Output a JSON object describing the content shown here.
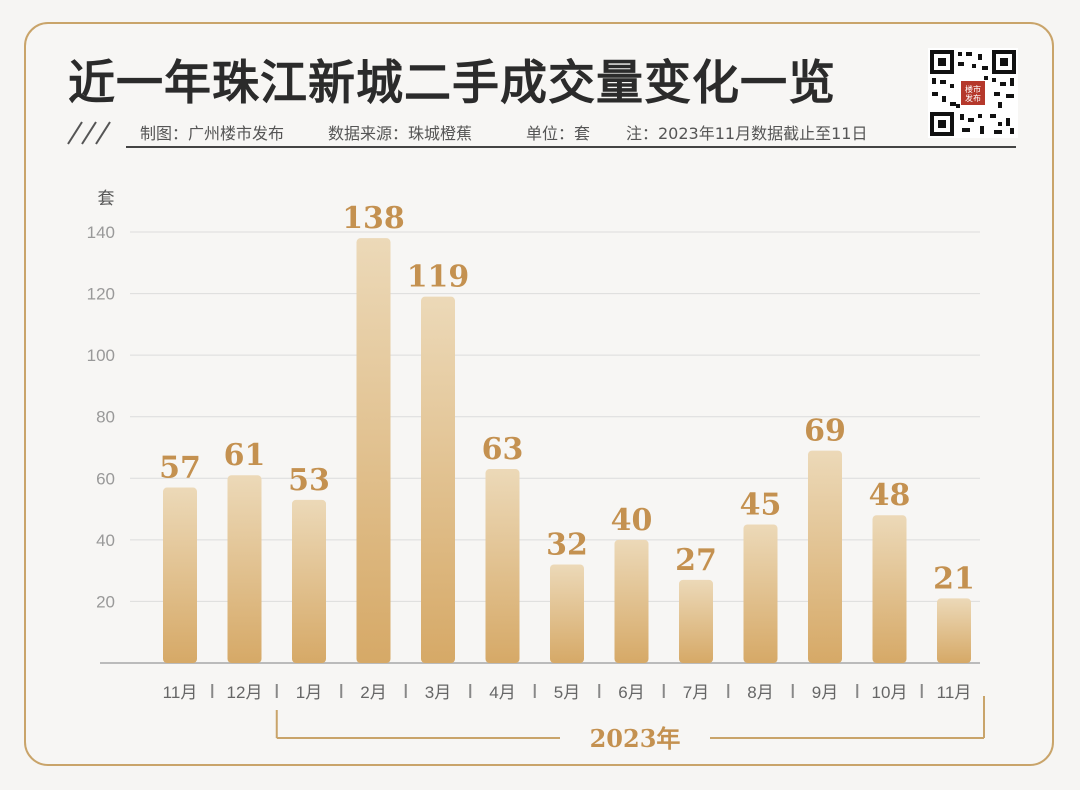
{
  "header": {
    "title": "近一年珠江新城二手成交量变化一览",
    "meta_producer": "制图：广州楼市发布",
    "meta_source": "数据来源：珠城橙蕉",
    "meta_unit": "单位：套",
    "meta_note": "注：2023年11月数据截止至11日"
  },
  "qr": {
    "stamp_text": "楼市发布"
  },
  "colors": {
    "accent": "#c9a46a",
    "bar_top": "#ecd9b8",
    "bar_bottom": "#d7ab6c",
    "label": "#c49150"
  },
  "chart_data": {
    "type": "bar",
    "ylabel": "套",
    "ylim": [
      0,
      140
    ],
    "yticks": [
      20,
      40,
      60,
      80,
      100,
      120,
      140
    ],
    "grid": true,
    "categories": [
      "11月",
      "12月",
      "1月",
      "2月",
      "3月",
      "4月",
      "5月",
      "6月",
      "7月",
      "8月",
      "9月",
      "10月",
      "11月"
    ],
    "values": [
      57,
      61,
      53,
      138,
      119,
      63,
      32,
      40,
      27,
      45,
      69,
      48,
      21
    ],
    "year_bracket_label": "2023年"
  }
}
